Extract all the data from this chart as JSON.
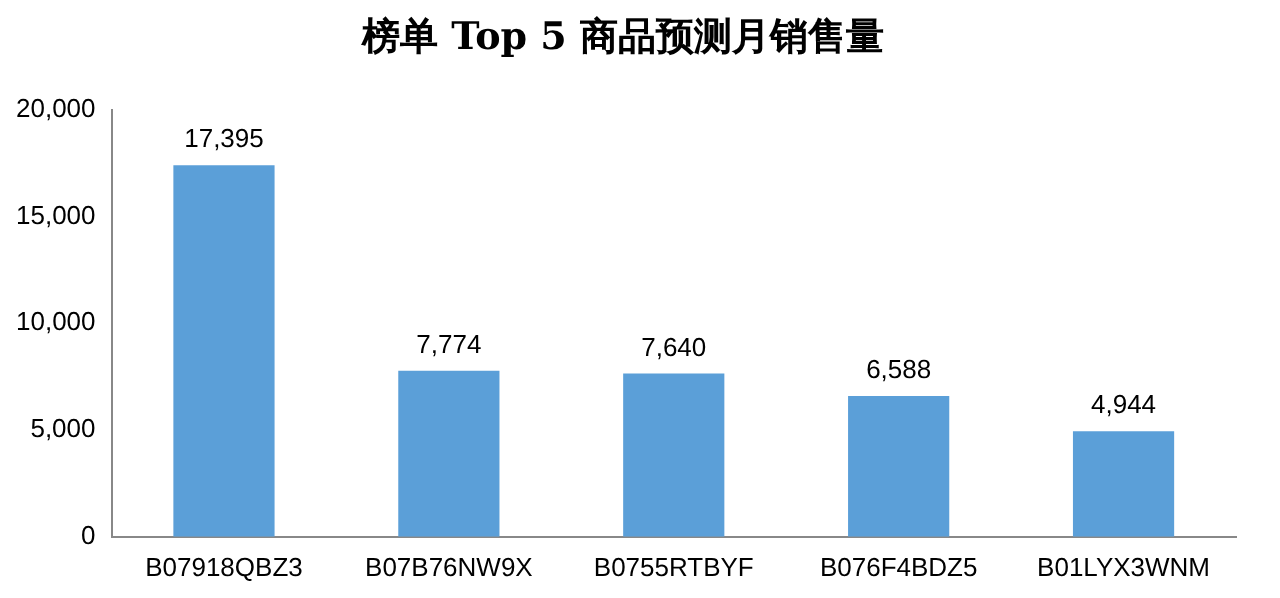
{
  "chart_data": {
    "type": "bar",
    "title": "榜单 Top 5 商品预测月销售量",
    "categories": [
      "B07918QBZ3",
      "B07B76NW9X",
      "B0755RTBYF",
      "B076F4BDZ5",
      "B01LYX3WNM"
    ],
    "values": [
      17395,
      7774,
      7640,
      6588,
      4944
    ],
    "value_labels": [
      "17,395",
      "7,774",
      "7,640",
      "6,588",
      "4,944"
    ],
    "color": "#5b9fd8",
    "ylim": [
      0,
      20000
    ],
    "yticks": [
      0,
      {
        "value": 5000,
        "label": "5,000"
      },
      {
        "value": 10000,
        "label": "10,000"
      },
      {
        "value": 15000,
        "label": "15,000"
      },
      {
        "value": 20000,
        "label": "20,000"
      }
    ],
    "grid": false,
    "legend": false
  }
}
